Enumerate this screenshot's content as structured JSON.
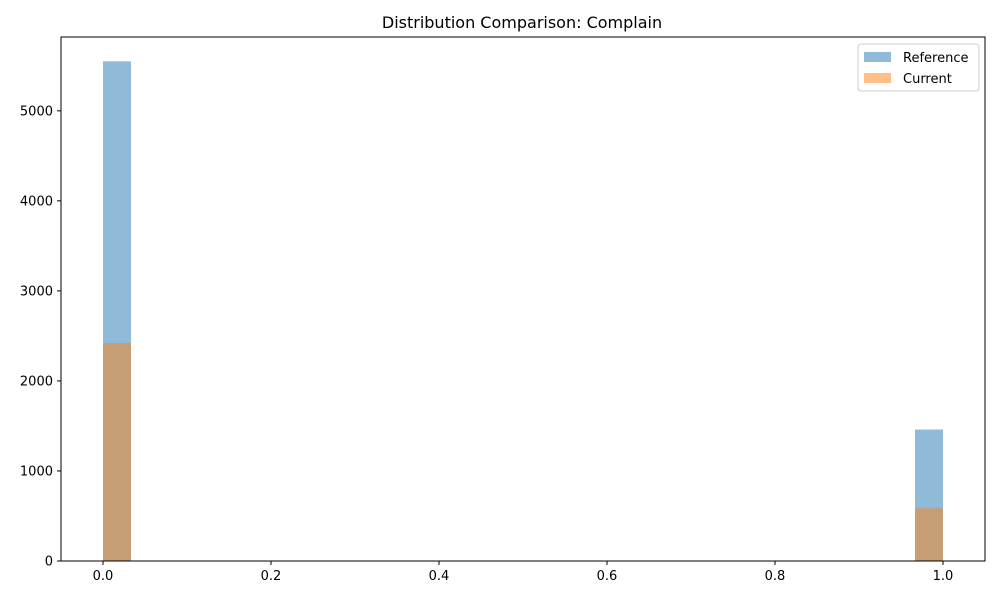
{
  "chart_data": {
    "type": "bar",
    "title": "Distribution Comparison: Complain",
    "xlabel": "",
    "ylabel": "",
    "xlim": [
      -0.05,
      1.05
    ],
    "ylim": [
      0,
      5820
    ],
    "x_ticks": [
      0.0,
      0.2,
      0.4,
      0.6,
      0.8,
      1.0
    ],
    "x_tick_labels": [
      "0.0",
      "0.2",
      "0.4",
      "0.6",
      "0.8",
      "1.0"
    ],
    "y_ticks": [
      0,
      1000,
      2000,
      3000,
      4000,
      5000
    ],
    "y_tick_labels": [
      "0",
      "1000",
      "2000",
      "3000",
      "4000",
      "5000"
    ],
    "bin_width": 0.0333,
    "grid": false,
    "legend_position": "top-right",
    "series": [
      {
        "name": "Reference",
        "color": "#1f77b4",
        "opacity": 0.5,
        "bins": [
          {
            "x_start": 0.0,
            "value": 5550
          },
          {
            "x_start": 0.9667,
            "value": 1460
          }
        ]
      },
      {
        "name": "Current",
        "color": "#ff7f0e",
        "opacity": 0.5,
        "bins": [
          {
            "x_start": 0.0,
            "value": 2420
          },
          {
            "x_start": 0.9667,
            "value": 585
          }
        ]
      }
    ]
  }
}
